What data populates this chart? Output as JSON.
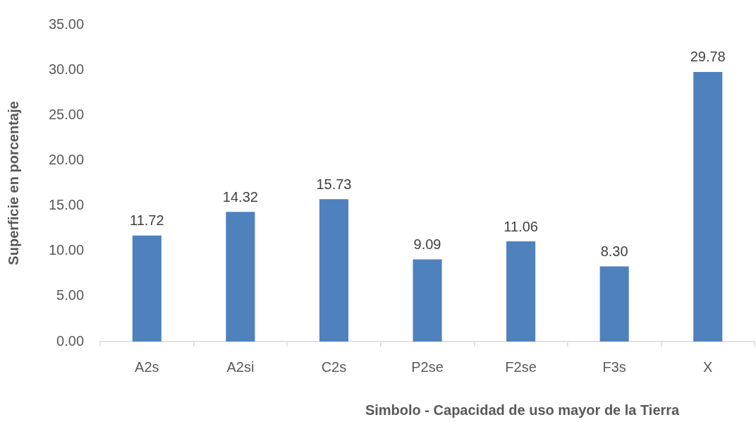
{
  "chart_data": {
    "type": "bar",
    "xlabel": "Simbolo - Capacidad de uso mayor de la Tierra",
    "ylabel": "Superficie en porcentaje",
    "categories": [
      "A2s",
      "A2si",
      "C2s",
      "P2se",
      "F2se",
      "F3s",
      "X"
    ],
    "values": [
      11.72,
      14.32,
      15.73,
      9.09,
      11.06,
      8.3,
      29.78
    ],
    "value_labels": [
      "11.72",
      "14.32",
      "15.73",
      "9.09",
      "11.06",
      "8.30",
      "29.78"
    ],
    "color": "#4f81bd",
    "ylim": [
      0,
      35
    ],
    "yticks": [
      {
        "value": 0,
        "label": "0.00"
      },
      {
        "value": 5,
        "label": "5.00"
      },
      {
        "value": 10,
        "label": "10.00"
      },
      {
        "value": 15,
        "label": "15.00"
      },
      {
        "value": 20,
        "label": "20.00"
      },
      {
        "value": 25,
        "label": "25.00"
      },
      {
        "value": 30,
        "label": "30.00"
      },
      {
        "value": 35,
        "label": "35.00"
      }
    ],
    "grid": false,
    "legend": false
  }
}
